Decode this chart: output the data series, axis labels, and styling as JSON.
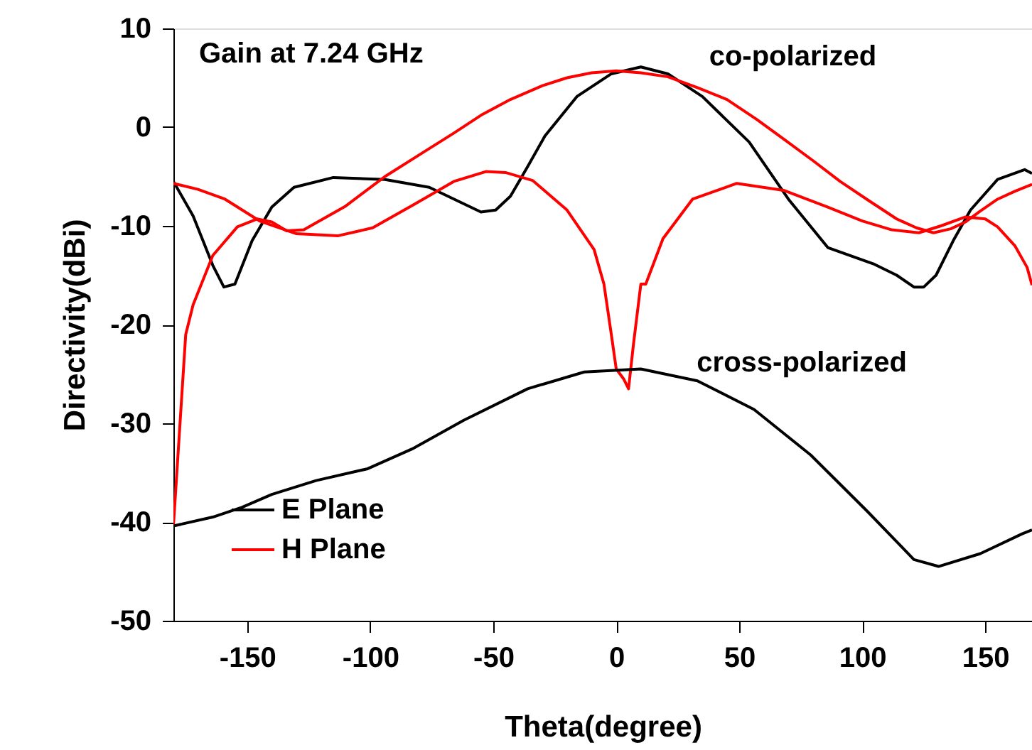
{
  "chart_data": {
    "type": "line",
    "xlabel": "Theta(degree)",
    "ylabel": "Directivity(dBi)",
    "xlim": [
      -180,
      169
    ],
    "xticks": [
      -150,
      -100,
      -50,
      0,
      50,
      100,
      150
    ],
    "ylim": [
      -50,
      10
    ],
    "yticks": [
      -50,
      -40,
      -30,
      -20,
      -10,
      0,
      10
    ],
    "grid": false,
    "legend": "bottom left",
    "marker": "none",
    "line_style": "solid",
    "annotations": [
      "Gain at 7.24 GHz",
      {
        "text": "co-polarized",
        "x": 10,
        "y": 6
      },
      {
        "text": "cross-polarized",
        "x": 5,
        "y": -25
      }
    ],
    "series": [
      {
        "name": "E Plane",
        "color": "#000000",
        "x": [
          -180,
          -172,
          -164,
          -159.5,
          -155,
          -148,
          -140,
          -131,
          -115,
          -94,
          -76,
          -55,
          -49,
          -43,
          -36,
          -29,
          -16,
          -2,
          10,
          21,
          35,
          54,
          70,
          86,
          105,
          114,
          121,
          125,
          130,
          137,
          144,
          155,
          166,
          169
        ],
        "values": [
          -5.5,
          -9,
          -14,
          -16.2,
          -15.9,
          -11.5,
          -8.1,
          -6.1,
          -5.1,
          -5.3,
          -6.1,
          -8.6,
          -8.4,
          -7,
          -4,
          -0.9,
          3.1,
          5.4,
          6.1,
          5.4,
          3.1,
          -1.5,
          -7.3,
          -12.2,
          -13.9,
          -15,
          -16.2,
          -16.2,
          -15,
          -11.5,
          -8.4,
          -5.3,
          -4.3,
          -4.7
        ]
      },
      {
        "color": "#ff0000",
        "x": [
          -180,
          -175,
          -172,
          -164,
          -154,
          -146,
          -140,
          -134,
          -127,
          -110,
          -94,
          -80,
          -66,
          -55,
          -43,
          -30,
          -20,
          -10,
          0,
          10,
          21,
          33,
          45,
          57,
          68,
          80,
          91,
          103,
          114,
          122,
          129,
          136,
          142,
          148,
          155,
          162,
          169
        ],
        "values": [
          -40.4,
          -21,
          -18,
          -13,
          -10.1,
          -9.3,
          -9.6,
          -10.5,
          -10.4,
          -8,
          -5,
          -2.8,
          -0.6,
          1.2,
          2.8,
          4.2,
          5,
          5.5,
          5.7,
          5.5,
          5.1,
          4,
          2.8,
          0.8,
          -1.2,
          -3.4,
          -5.5,
          -7.5,
          -9.3,
          -10.2,
          -10.7,
          -10.3,
          -9.6,
          -8.5,
          -7.3,
          -6.5,
          -5.8
        ]
      },
      {
        "name": "H Plane",
        "color": "#ff0000",
        "x": [
          -180,
          -170,
          -159,
          -145,
          -130,
          -113,
          -99,
          -82,
          -66,
          -53,
          -45,
          -34,
          -20,
          -9,
          -5,
          -2,
          0,
          3,
          5,
          7,
          10,
          12,
          19,
          31,
          49,
          68,
          86,
          100,
          112,
          123,
          132,
          142,
          150,
          155,
          162,
          167,
          169
        ],
        "values": [
          -5.7,
          -6.3,
          -7.3,
          -9.5,
          -10.8,
          -11,
          -10.2,
          -7.8,
          -5.5,
          -4.5,
          -4.6,
          -5.4,
          -8.4,
          -12.4,
          -15.9,
          -21,
          -24.5,
          -25.5,
          -26.5,
          -22,
          -15.9,
          -15.9,
          -11.3,
          -7.3,
          -5.7,
          -6.4,
          -8.1,
          -9.5,
          -10.4,
          -10.7,
          -10,
          -9.1,
          -9.3,
          -10.1,
          -12,
          -14.2,
          -16
        ]
      },
      {
        "color": "#000000",
        "x": [
          -180,
          -164,
          -152,
          -140,
          -122,
          -101,
          -83,
          -62,
          -36,
          -13,
          10,
          33,
          56,
          79,
          102,
          121,
          131,
          148,
          165,
          169
        ],
        "values": [
          -40.4,
          -39.5,
          -38.5,
          -37.2,
          -35.8,
          -34.6,
          -32.6,
          -29.7,
          -26.5,
          -24.8,
          -24.5,
          -25.7,
          -28.6,
          -33.2,
          -38.9,
          -43.8,
          -44.5,
          -43.2,
          -41.2,
          -40.8
        ]
      }
    ]
  }
}
